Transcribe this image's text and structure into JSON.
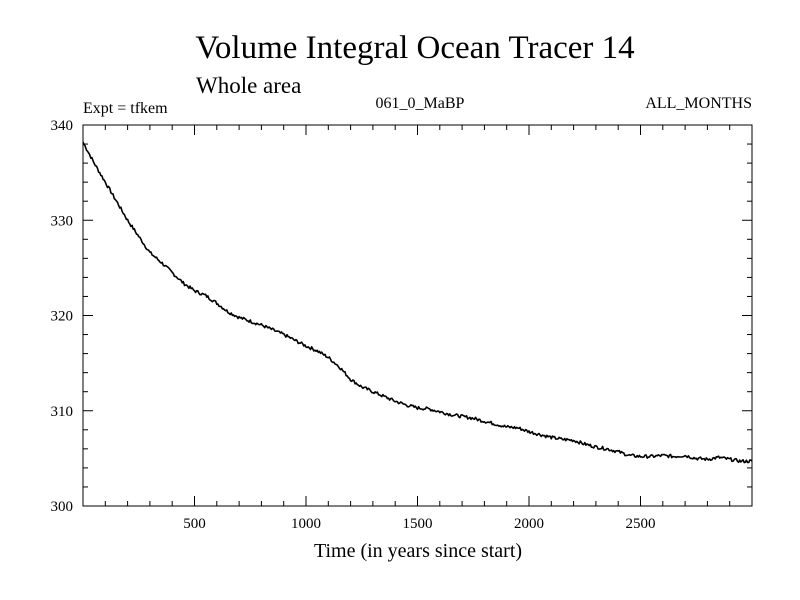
{
  "chart_data": {
    "type": "line",
    "title": "Volume Integral Ocean Tracer 14",
    "subtitle": "Whole area",
    "annotations": {
      "left": "Expt = tfkem",
      "center": "061_0_MaBP",
      "right": "ALL_MONTHS"
    },
    "xlabel": "Time (in years since start)",
    "ylabel": "",
    "xlim": [
      0,
      3000
    ],
    "ylim": [
      300,
      340
    ],
    "xticks": [
      500,
      1000,
      1500,
      2000,
      2500
    ],
    "yticks": [
      300,
      310,
      320,
      330,
      340
    ],
    "grid": false,
    "legend": "none",
    "line_color": "#000000",
    "series": [
      {
        "x": [
          0,
          50,
          100,
          150,
          200,
          250,
          300,
          350,
          400,
          450,
          500,
          550,
          600,
          650,
          700,
          750,
          800,
          850,
          900,
          950,
          1000,
          1050,
          1100,
          1150,
          1200,
          1250,
          1300,
          1350,
          1400,
          1450,
          1500,
          1550,
          1600,
          1650,
          1700,
          1750,
          1800,
          1850,
          1900,
          1950,
          2000,
          2050,
          2100,
          2150,
          2200,
          2250,
          2300,
          2350,
          2400,
          2450,
          2500,
          2550,
          2600,
          2650,
          2700,
          2750,
          2800,
          2850,
          2900,
          2950,
          3000
        ],
        "values": [
          338.2,
          336.0,
          334.0,
          332.0,
          330.0,
          328.3,
          326.6,
          325.6,
          324.5,
          323.4,
          322.6,
          322.1,
          321.3,
          320.4,
          319.8,
          319.4,
          319.0,
          318.5,
          318.0,
          317.4,
          316.8,
          316.3,
          315.6,
          314.6,
          313.3,
          312.5,
          312.0,
          311.5,
          311.0,
          310.6,
          310.3,
          310.2,
          309.9,
          309.6,
          309.4,
          309.2,
          308.9,
          308.6,
          308.3,
          308.2,
          307.8,
          307.5,
          307.2,
          307.0,
          306.9,
          306.5,
          306.2,
          306.0,
          305.7,
          305.3,
          305.2,
          305.2,
          305.3,
          305.2,
          305.3,
          305.0,
          304.9,
          305.1,
          304.9,
          304.7,
          304.7
        ]
      }
    ]
  }
}
